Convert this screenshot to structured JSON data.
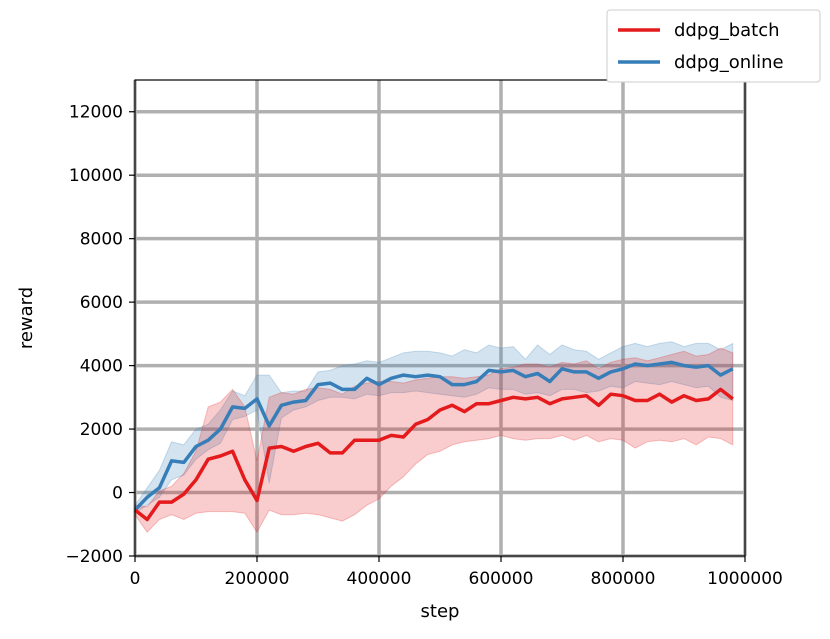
{
  "chart_data": {
    "type": "line",
    "xlabel": "step",
    "ylabel": "reward",
    "xlim": [
      0,
      1000000
    ],
    "ylim": [
      -2000,
      13000
    ],
    "grid": true,
    "legend_position": "top-right",
    "x_ticks": [
      0,
      200000,
      400000,
      600000,
      800000,
      1000000
    ],
    "x_tick_labels": [
      "0",
      "200000",
      "400000",
      "600000",
      "800000",
      "1000000"
    ],
    "y_ticks": [
      -2000,
      0,
      2000,
      4000,
      6000,
      8000,
      10000,
      12000
    ],
    "y_tick_labels": [
      "−2000",
      "0",
      "2000",
      "4000",
      "6000",
      "8000",
      "10000",
      "12000"
    ],
    "x": [
      0,
      20000,
      40000,
      60000,
      80000,
      100000,
      120000,
      140000,
      160000,
      180000,
      200000,
      220000,
      240000,
      260000,
      280000,
      300000,
      320000,
      340000,
      360000,
      380000,
      400000,
      420000,
      440000,
      460000,
      480000,
      500000,
      520000,
      540000,
      560000,
      580000,
      600000,
      620000,
      640000,
      660000,
      680000,
      700000,
      720000,
      740000,
      760000,
      780000,
      800000,
      820000,
      840000,
      860000,
      880000,
      900000,
      920000,
      940000,
      960000,
      980000
    ],
    "series": [
      {
        "name": "ddpg_batch",
        "color": "#e41a1c",
        "values": [
          -550,
          -850,
          -300,
          -300,
          -50,
          400,
          1050,
          1150,
          1300,
          400,
          -250,
          1400,
          1450,
          1300,
          1450,
          1550,
          1250,
          1250,
          1650,
          1650,
          1650,
          1800,
          1750,
          2150,
          2300,
          2600,
          2750,
          2550,
          2800,
          2800,
          2900,
          3000,
          2950,
          3000,
          2800,
          2950,
          3000,
          3050,
          2750,
          3100,
          3050,
          2900,
          2900,
          3100,
          2850,
          3050,
          2900,
          2950,
          3250,
          2950
        ],
        "lower": [
          -700,
          -1250,
          -850,
          -700,
          -850,
          -650,
          -600,
          -600,
          -600,
          -650,
          -1250,
          -550,
          -700,
          -700,
          -650,
          -700,
          -800,
          -900,
          -700,
          -400,
          -200,
          200,
          500,
          900,
          1200,
          1300,
          1500,
          1600,
          1650,
          1700,
          1800,
          1700,
          1650,
          1700,
          1700,
          1800,
          1650,
          1800,
          1600,
          1700,
          1650,
          1400,
          1600,
          1650,
          1600,
          1700,
          1500,
          1750,
          1700,
          1500
        ],
        "upper": [
          -400,
          -450,
          50,
          200,
          600,
          1300,
          2700,
          2850,
          3250,
          2700,
          1000,
          3000,
          3150,
          3100,
          3250,
          3300,
          3250,
          3100,
          3350,
          3450,
          3500,
          3500,
          3450,
          3550,
          3600,
          3650,
          3650,
          3600,
          3650,
          3700,
          3900,
          3950,
          4050,
          4050,
          3950,
          4100,
          4050,
          4150,
          3900,
          4100,
          4200,
          4250,
          4150,
          4250,
          4350,
          4450,
          4300,
          4350,
          4550,
          4400
        ]
      },
      {
        "name": "ddpg_online",
        "color": "#377eb8",
        "values": [
          -550,
          -150,
          150,
          1000,
          950,
          1450,
          1650,
          2000,
          2700,
          2650,
          2950,
          2100,
          2750,
          2850,
          2900,
          3400,
          3450,
          3250,
          3250,
          3600,
          3400,
          3600,
          3700,
          3650,
          3700,
          3650,
          3400,
          3400,
          3500,
          3850,
          3800,
          3850,
          3650,
          3750,
          3500,
          3900,
          3800,
          3800,
          3600,
          3800,
          3900,
          4050,
          4000,
          4050,
          4100,
          4000,
          3950,
          4000,
          3700,
          3900
        ],
        "lower": [
          -650,
          -400,
          -150,
          400,
          550,
          1050,
          1350,
          1550,
          2300,
          2400,
          2600,
          300,
          2350,
          2600,
          2700,
          2900,
          3000,
          3000,
          2950,
          3100,
          3050,
          3150,
          3150,
          3200,
          3150,
          3100,
          3050,
          3000,
          3100,
          3300,
          3250,
          3250,
          3100,
          3150,
          3050,
          3250,
          3250,
          3150,
          3200,
          3350,
          3300,
          3500,
          3450,
          3400,
          3500,
          3400,
          3300,
          3350,
          3000,
          2900
        ],
        "upper": [
          -400,
          150,
          700,
          1600,
          1500,
          2000,
          2150,
          2600,
          3200,
          3050,
          3700,
          3700,
          3150,
          3200,
          3200,
          3800,
          3850,
          4000,
          4050,
          4150,
          4100,
          4250,
          4400,
          4450,
          4450,
          4400,
          4300,
          4500,
          4400,
          4650,
          4550,
          4600,
          4200,
          4650,
          4350,
          4650,
          4500,
          4450,
          4200,
          4400,
          4600,
          4700,
          4600,
          4700,
          4750,
          4600,
          4700,
          4700,
          4500,
          4700
        ]
      }
    ]
  }
}
